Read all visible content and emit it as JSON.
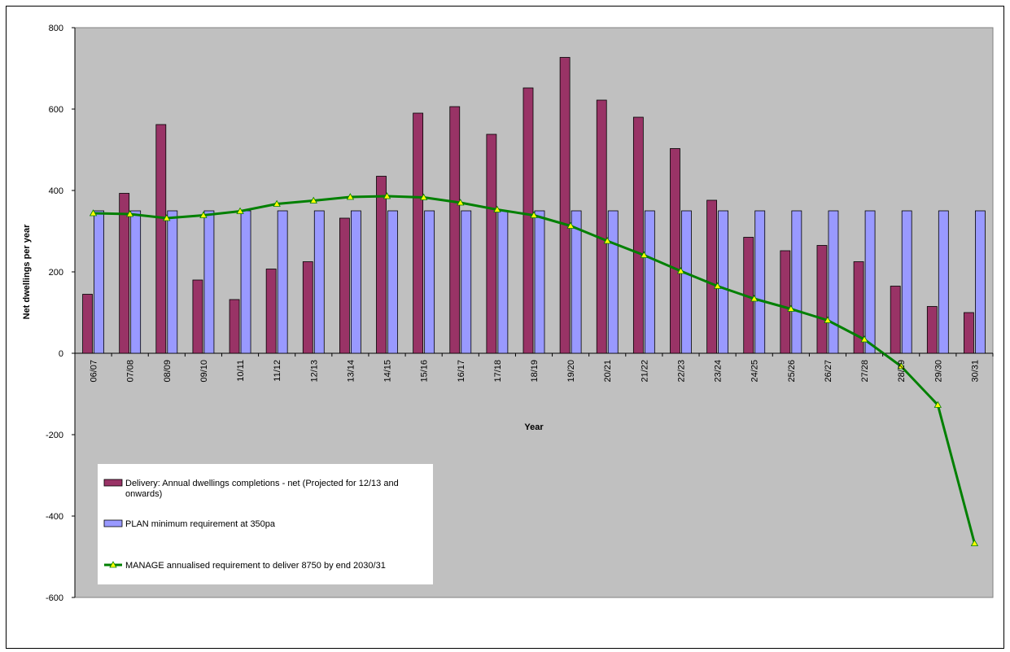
{
  "chart_data": {
    "type": "bar",
    "title": "",
    "xlabel": "Year",
    "ylabel": "Net dwellings per year",
    "ylim": [
      -600,
      800
    ],
    "yticks": [
      800,
      600,
      400,
      200,
      0,
      -200,
      -400,
      -600
    ],
    "grid": false,
    "plot_background": "#C0C0C0",
    "legend_placement": "lower-left inside plot",
    "categories": [
      "06/07",
      "07/08",
      "08/09",
      "09/10",
      "10/11",
      "11/12",
      "12/13",
      "13/14",
      "14/15",
      "15/16",
      "16/17",
      "17/18",
      "18/19",
      "19/20",
      "20/21",
      "21/22",
      "22/23",
      "23/24",
      "24/25",
      "25/26",
      "26/27",
      "27/28",
      "28/29",
      "29/30",
      "30/31"
    ],
    "series": [
      {
        "name": "Delivery: Annual dwellings completions - net (Projected for 12/13 and onwards)",
        "type": "bar",
        "color": "#993366",
        "values": [
          145,
          393,
          562,
          180,
          132,
          207,
          225,
          332,
          435,
          590,
          606,
          538,
          652,
          727,
          622,
          580,
          503,
          376,
          285,
          252,
          265,
          225,
          165,
          115,
          100
        ]
      },
      {
        "name": "PLAN minimum requirement at 350pa",
        "type": "bar",
        "color": "#9999FF",
        "values": [
          350,
          350,
          350,
          350,
          350,
          350,
          350,
          350,
          350,
          350,
          350,
          350,
          350,
          350,
          350,
          350,
          350,
          350,
          350,
          350,
          350,
          350,
          350,
          350,
          350
        ]
      },
      {
        "name": "MANAGE annualised requirement to deliver 8750 by end 2030/31",
        "type": "line",
        "color": "#008000",
        "marker_color": "#FFFF00",
        "values": [
          344,
          342,
          332,
          339,
          349,
          367,
          375,
          384,
          386,
          383,
          370,
          353,
          339,
          313,
          276,
          241,
          202,
          165,
          134,
          109,
          81,
          34,
          -32,
          -127,
          -467
        ]
      }
    ]
  }
}
